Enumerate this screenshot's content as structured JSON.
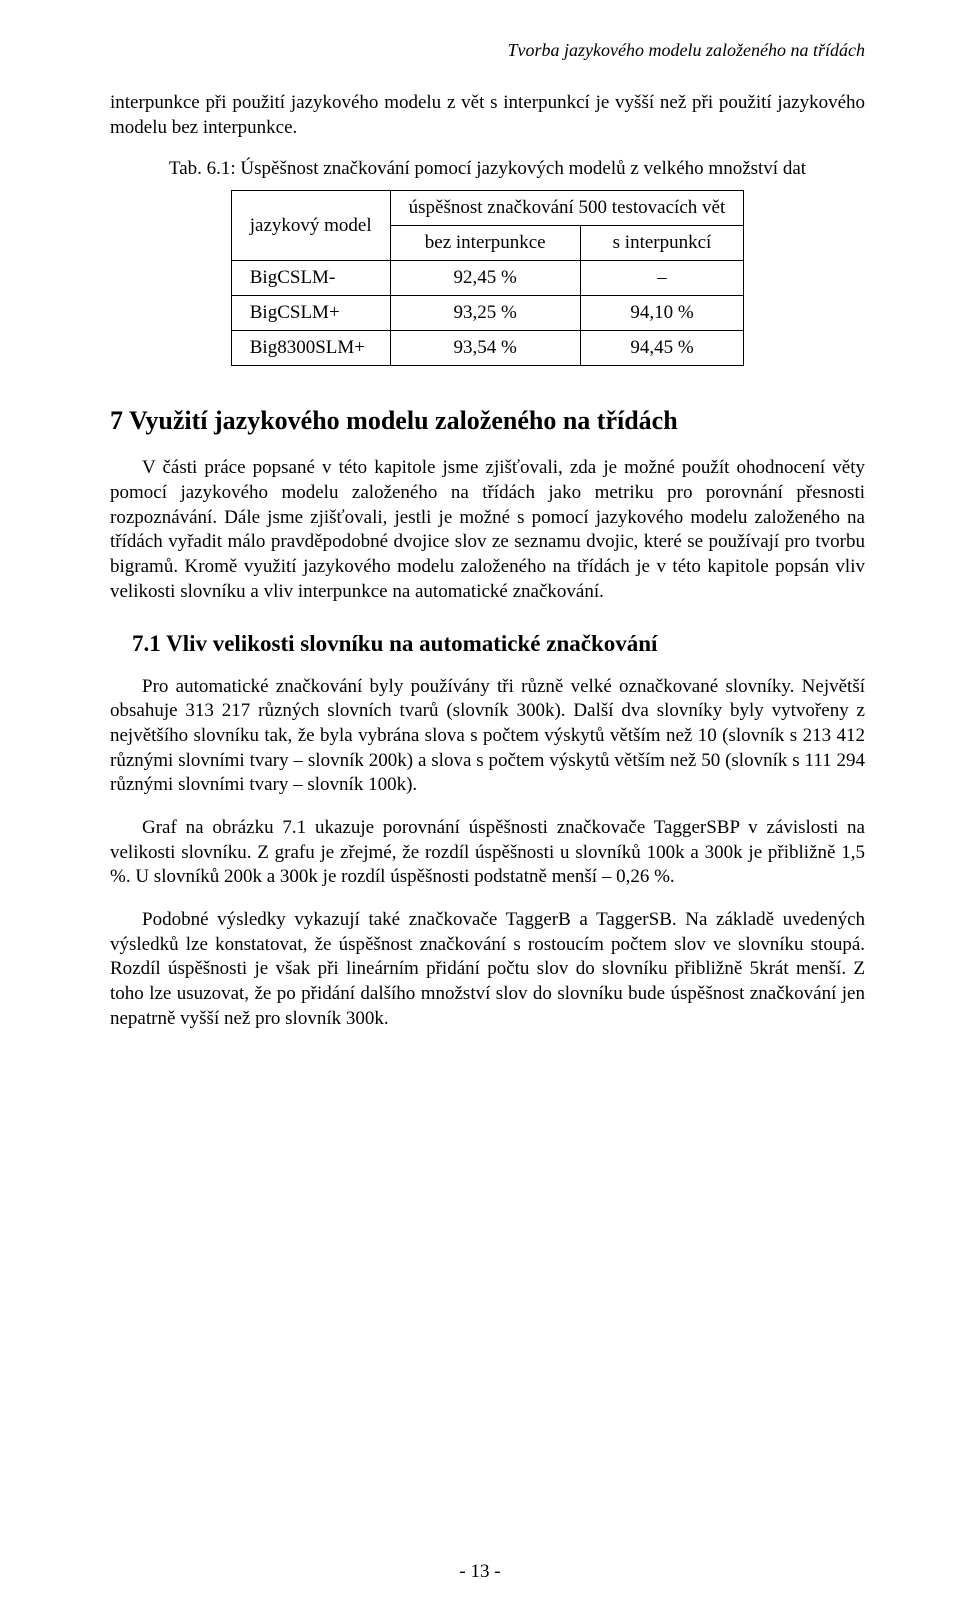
{
  "header": {
    "running_title": "Tvorba jazykového modelu založeného na třídách"
  },
  "intro": {
    "p1": "interpunkce při použití jazykového modelu z vět s interpunkcí je vyšší než při použití jazykového modelu bez interpunkce."
  },
  "table": {
    "caption": "Tab. 6.1: Úspěšnost značkování pomocí jazykových modelů z velkého množství dat",
    "col0_header": "jazykový model",
    "colspan_header": "úspěšnost značkování 500 testovacích vět",
    "sub1": "bez interpunkce",
    "sub2": "s interpunkcí",
    "rows": [
      {
        "name": "BigCSLM-",
        "c1": "92,45 %",
        "c2": "–"
      },
      {
        "name": "BigCSLM+",
        "c1": "93,25 %",
        "c2": "94,10 %"
      },
      {
        "name": "Big8300SLM+",
        "c1": "93,54 %",
        "c2": "94,45 %"
      }
    ],
    "style": {
      "type": "table",
      "border_color": "#000000",
      "border_width": 1.5,
      "font_size": 19,
      "background_color": "#ffffff"
    }
  },
  "section7": {
    "heading": "7  Využití jazykového modelu založeného na třídách",
    "p1": "V části práce popsané v této kapitole jsme zjišťovali, zda je možné použít ohodnocení věty pomocí jazykového modelu založeného na třídách jako metriku pro porovnání přesnosti rozpoznávání. Dále jsme zjišťovali, jestli je možné s pomocí jazykového modelu založeného na třídách vyřadit málo pravděpodobné dvojice slov ze seznamu dvojic, které se používají pro tvorbu bigramů. Kromě využití jazykového modelu založeného na třídách je v této kapitole popsán vliv velikosti slovníku a vliv interpunkce na automatické značkování.",
    "sub71_heading": "7.1 Vliv velikosti slovníku na automatické značkování",
    "p2": "Pro automatické značkování byly používány tři různě velké označkované slovníky. Největší obsahuje 313 217 různých slovních tvarů (slovník 300k). Další dva slovníky byly vytvořeny z největšího slovníku tak, že byla vybrána slova s počtem výskytů větším než 10 (slovník s 213 412 různými slovními tvary – slovník 200k) a slova s počtem výskytů větším než 50 (slovník s 111 294 různými slovními tvary – slovník 100k).",
    "p3": "Graf na obrázku 7.1 ukazuje porovnání úspěšnosti značkovače TaggerSBP v závislosti na velikosti slovníku. Z grafu je zřejmé, že rozdíl úspěšnosti u slovníků 100k a 300k je přibližně 1,5 %. U slovníků 200k a 300k je rozdíl úspěšnosti podstatně menší – 0,26 %.",
    "p4": "Podobné výsledky vykazují také značkovače TaggerB a TaggerSB. Na základě uvedených výsledků lze konstatovat, že úspěšnost značkování s rostoucím počtem slov ve slovníku stoupá. Rozdíl úspěšnosti je však při lineárním přidání počtu slov do slovníku přibližně 5krát menší. Z toho lze usuzovat, že po přidání dalšího množství slov do slovníku bude úspěšnost značkování jen nepatrně vyšší než pro slovník 300k."
  },
  "footer": {
    "page_number": "- 13 -"
  },
  "page_style": {
    "background_color": "#ffffff",
    "text_color": "#000000",
    "body_font_size": 19,
    "heading_font_size": 26,
    "subheading_font_size": 23,
    "font_family": "Times New Roman"
  }
}
